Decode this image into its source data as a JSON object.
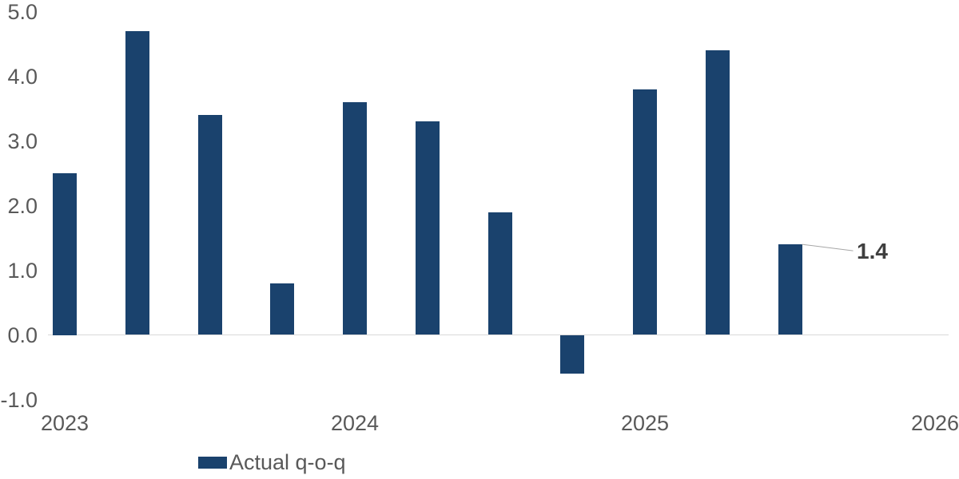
{
  "chart_data": {
    "type": "bar",
    "categories": [
      "2023 Q1",
      "2023 Q2",
      "2023 Q3",
      "2023 Q4",
      "2024 Q1",
      "2024 Q2",
      "2024 Q3",
      "2024 Q4",
      "2025 Q1",
      "2025 Q2",
      "2025 Q3"
    ],
    "series": [
      {
        "name": "Actual q-o-q",
        "values": [
          2.5,
          4.7,
          3.4,
          0.8,
          3.6,
          3.3,
          1.9,
          -0.6,
          3.8,
          4.4,
          1.4
        ]
      }
    ],
    "y_ticks": [
      {
        "label": "5.0",
        "value": 5.0
      },
      {
        "label": "4.0",
        "value": 4.0
      },
      {
        "label": "3.0",
        "value": 3.0
      },
      {
        "label": "2.0",
        "value": 2.0
      },
      {
        "label": "1.0",
        "value": 1.0
      },
      {
        "label": "0.0",
        "value": 0.0
      },
      {
        "label": "-1.0",
        "value": -1.0
      }
    ],
    "x_ticks": [
      {
        "label": "2023",
        "quarter_index": 0
      },
      {
        "label": "2024",
        "quarter_index": 4
      },
      {
        "label": "2025",
        "quarter_index": 8
      },
      {
        "label": "2026",
        "quarter_index": 12
      }
    ],
    "ylim": [
      -1.0,
      5.0
    ],
    "grid": false,
    "legend_position": "bottom",
    "annotation": {
      "text": "1.4",
      "index": 10,
      "value": 1.4
    },
    "colors": {
      "bar": "#1A426D",
      "axis_text": "#595959",
      "baseline": "#D9D9D9",
      "leader_line": "#A6A6A6",
      "annotation_text": "#3F3F3F",
      "background": "#FFFFFF"
    }
  }
}
